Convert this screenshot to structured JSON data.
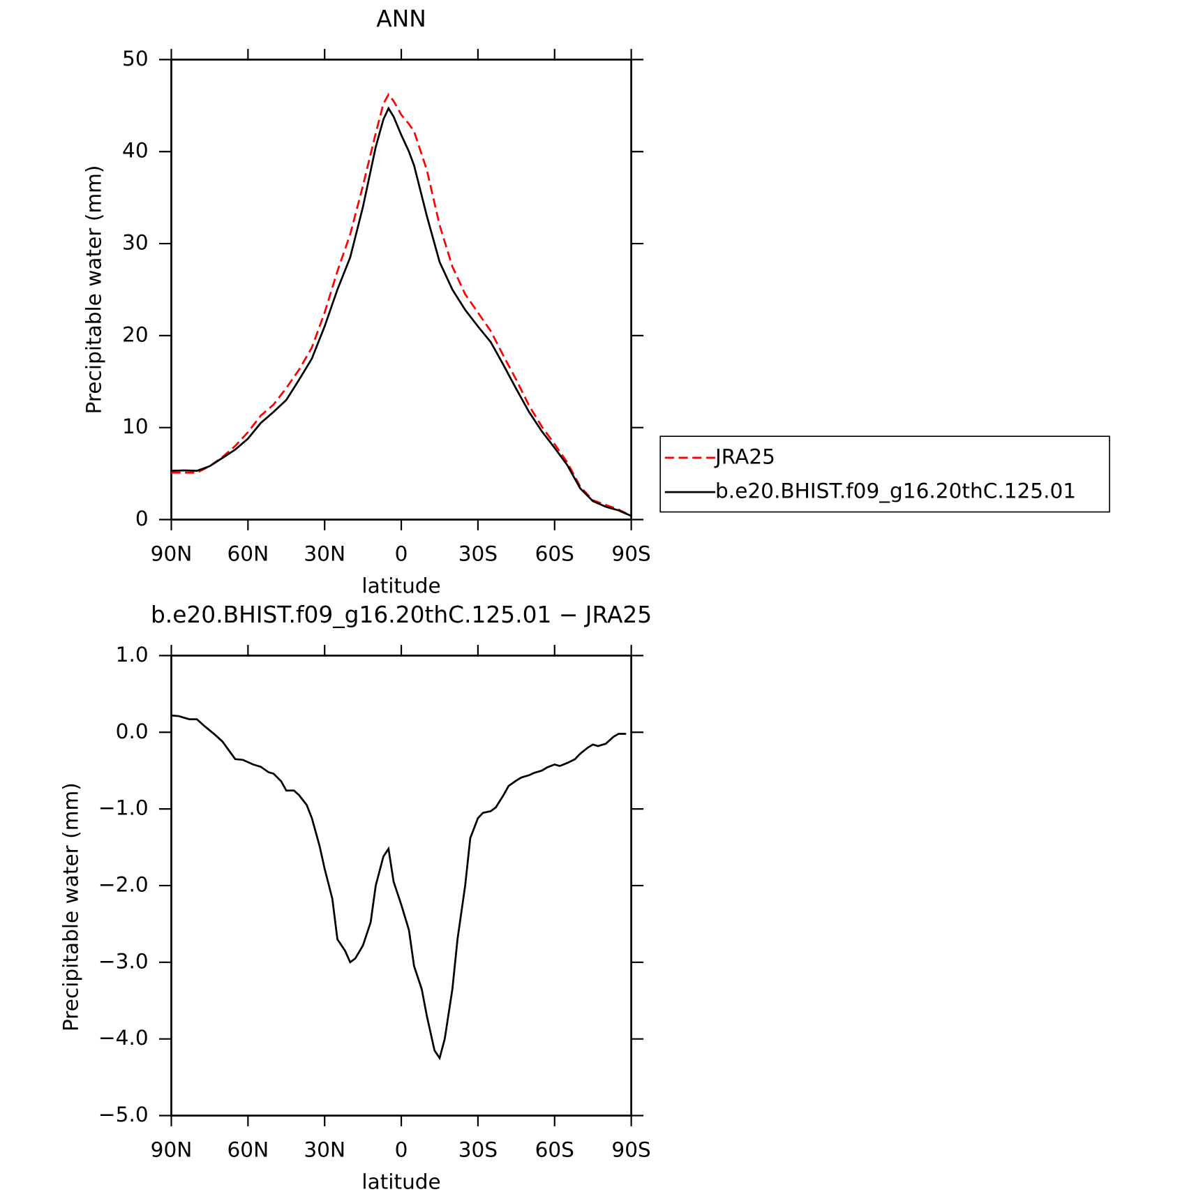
{
  "chart_data": [
    {
      "type": "line",
      "title": "ANN",
      "xlabel": "latitude",
      "ylabel": "Precipitable water (mm)",
      "x": [
        90,
        85,
        80,
        75,
        70,
        65,
        60,
        55,
        50,
        45,
        40,
        35,
        30,
        25,
        20,
        15,
        10,
        7,
        5,
        3,
        0,
        -3,
        -5,
        -10,
        -15,
        -20,
        -25,
        -30,
        -35,
        -40,
        -45,
        -50,
        -55,
        -60,
        -65,
        -70,
        -75,
        -80,
        -85,
        -90
      ],
      "series": [
        {
          "name": "JRA25",
          "color": "#ff0000",
          "dash": true,
          "values": [
            5.1,
            5.1,
            5.1,
            5.8,
            6.8,
            8.0,
            9.5,
            11.3,
            12.5,
            14.3,
            16.3,
            18.7,
            22.5,
            27,
            31,
            36.3,
            42,
            45.2,
            46.2,
            45.5,
            44,
            43,
            42.2,
            38,
            32,
            27.5,
            24.5,
            22.5,
            20.5,
            17.8,
            15.2,
            12.4,
            10.1,
            8.2,
            6.2,
            3.6,
            2.1,
            1.6,
            1.1,
            0.4
          ]
        },
        {
          "name": "b.e20.BHIST.f09_g16.20thC.125.01",
          "color": "#000000",
          "dash": false,
          "values": [
            5.3,
            5.35,
            5.3,
            5.8,
            6.7,
            7.6,
            8.8,
            10.5,
            11.7,
            13.0,
            15.2,
            17.5,
            21,
            25,
            28.5,
            34,
            40.5,
            43.5,
            44.7,
            43.8,
            41.8,
            40,
            38.5,
            33,
            28,
            25,
            22.8,
            21,
            19.3,
            16.8,
            14.2,
            11.7,
            9.6,
            7.8,
            5.9,
            3.4,
            2.0,
            1.4,
            1.0,
            0.4
          ]
        }
      ],
      "xlim": [
        90,
        -90
      ],
      "xticks": [
        {
          "value": 90,
          "label": "90N"
        },
        {
          "value": 60,
          "label": "60N"
        },
        {
          "value": 30,
          "label": "30N"
        },
        0,
        {
          "value": -30,
          "label": "30S"
        },
        {
          "value": -60,
          "label": "60S"
        },
        {
          "value": -90,
          "label": "90S"
        }
      ],
      "ylim": [
        0,
        50
      ],
      "yticks": [
        0,
        10,
        20,
        30,
        40,
        50
      ],
      "legend": "right"
    },
    {
      "type": "line",
      "title": "b.e20.BHIST.f09_g16.20thC.125.01 − JRA25",
      "xlabel": "latitude",
      "ylabel": "Precipitable water (mm)",
      "x": [
        90,
        87,
        83,
        80,
        77,
        73,
        70,
        65,
        62,
        58,
        55,
        52,
        50,
        47,
        45,
        42,
        40,
        37,
        35,
        32,
        30,
        27,
        25,
        22,
        20,
        18,
        15,
        12,
        10,
        7,
        5,
        3,
        0,
        -3,
        -5,
        -8,
        -10,
        -13,
        -15,
        -17,
        -20,
        -22,
        -25,
        -27,
        -30,
        -32,
        -35,
        -37,
        -40,
        -42,
        -45,
        -47,
        -50,
        -52,
        -55,
        -57,
        -60,
        -62,
        -65,
        -68,
        -70,
        -73,
        -75,
        -77,
        -80,
        -83,
        -85,
        -88
      ],
      "series": [
        {
          "color": "#000000",
          "dash": false,
          "values": [
            0.22,
            0.21,
            0.17,
            0.17,
            0.08,
            -0.03,
            -0.12,
            -0.35,
            -0.36,
            -0.42,
            -0.45,
            -0.52,
            -0.54,
            -0.64,
            -0.76,
            -0.76,
            -0.82,
            -0.95,
            -1.12,
            -1.48,
            -1.78,
            -2.17,
            -2.7,
            -2.85,
            -3.0,
            -2.95,
            -2.78,
            -2.48,
            -2.0,
            -1.62,
            -1.52,
            -1.95,
            -2.25,
            -2.58,
            -3.05,
            -3.35,
            -3.7,
            -4.15,
            -4.25,
            -4.0,
            -3.35,
            -2.7,
            -2.0,
            -1.38,
            -1.12,
            -1.05,
            -1.03,
            -0.98,
            -0.82,
            -0.7,
            -0.63,
            -0.59,
            -0.56,
            -0.53,
            -0.5,
            -0.46,
            -0.42,
            -0.44,
            -0.4,
            -0.35,
            -0.28,
            -0.2,
            -0.16,
            -0.18,
            -0.15,
            -0.06,
            -0.02,
            -0.02
          ]
        }
      ],
      "xlim": [
        90,
        -90
      ],
      "xticks": [
        {
          "value": 90,
          "label": "90N"
        },
        {
          "value": 60,
          "label": "60N"
        },
        {
          "value": 30,
          "label": "30N"
        },
        0,
        {
          "value": -30,
          "label": "30S"
        },
        {
          "value": -60,
          "label": "60S"
        },
        {
          "value": -90,
          "label": "90S"
        }
      ],
      "ylim": [
        -5,
        1
      ],
      "yticks": [
        {
          "value": 1,
          "label": "1.0"
        },
        {
          "value": 0,
          "label": "0.0"
        },
        {
          "value": -1,
          "label": "−1.0"
        },
        {
          "value": -2,
          "label": "−2.0"
        },
        {
          "value": -3,
          "label": "−3.0"
        },
        {
          "value": -4,
          "label": "−4.0"
        },
        {
          "value": -5,
          "label": "−5.0"
        }
      ]
    }
  ]
}
